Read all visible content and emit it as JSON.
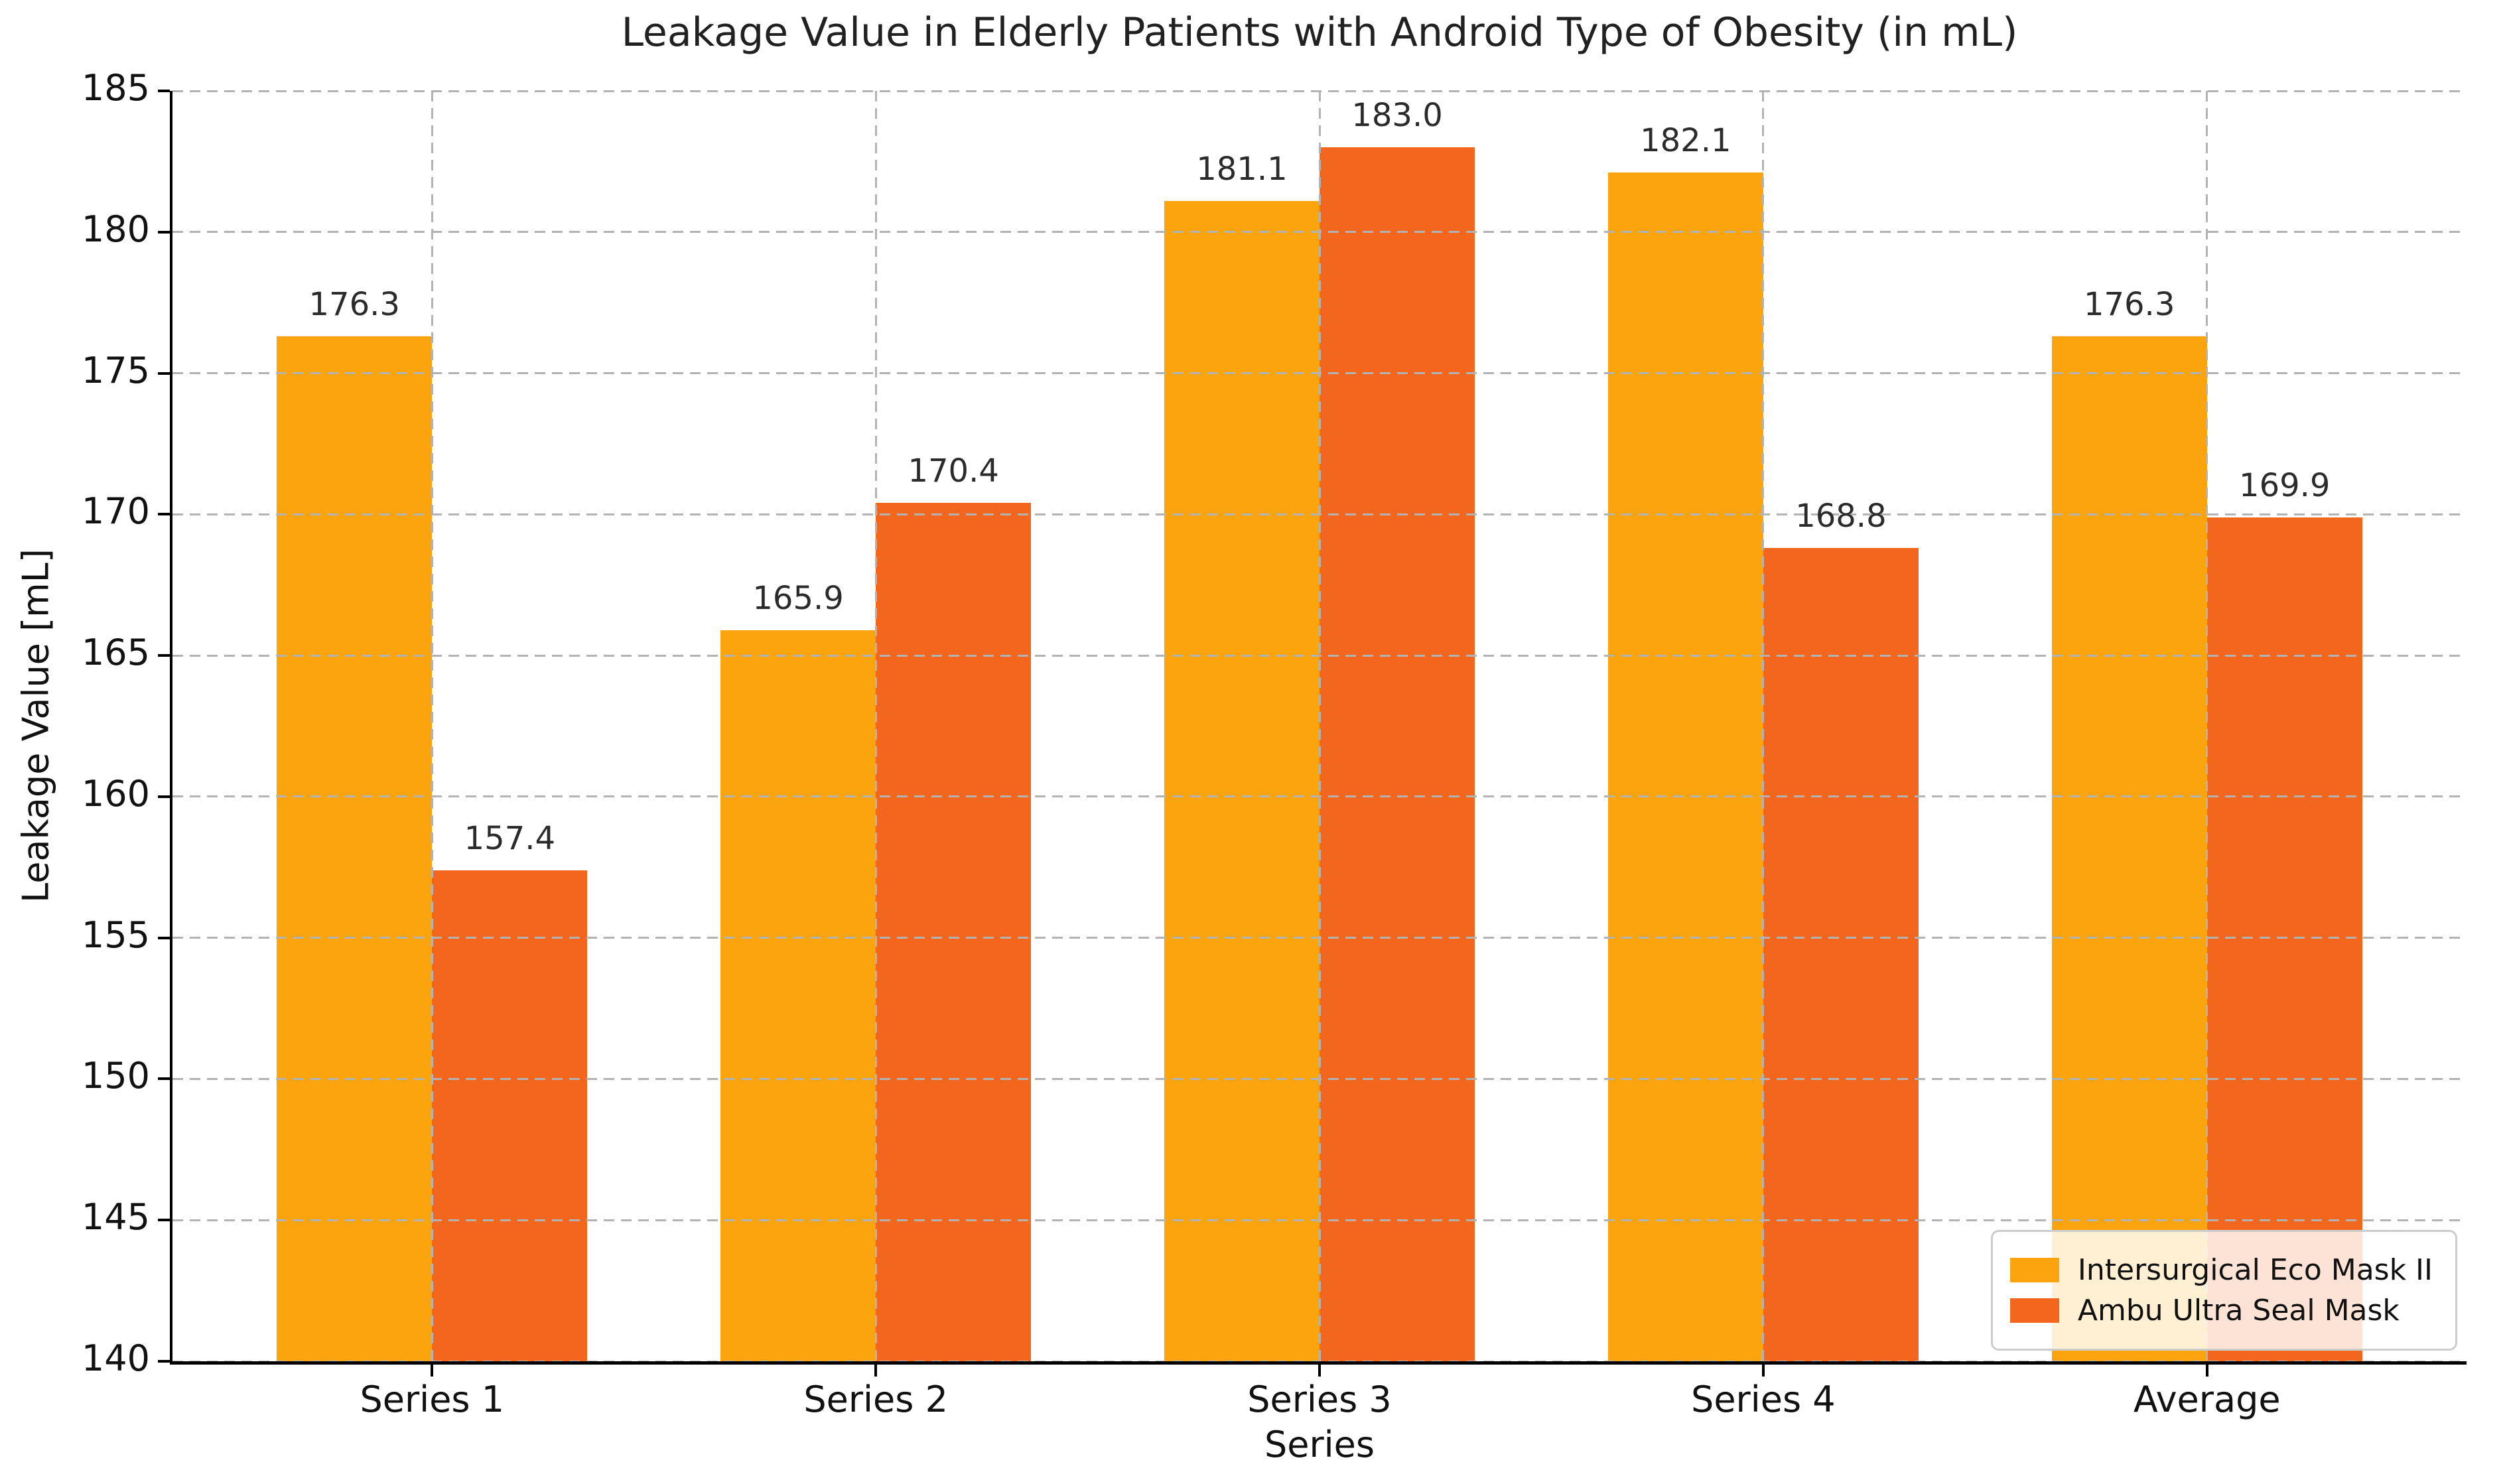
{
  "chart_data": {
    "type": "bar",
    "title": "Leakage Value in Elderly Patients with Android Type of Obesity (in mL)",
    "xlabel": "Series",
    "ylabel": "Leakage Value [mL]",
    "categories": [
      "Series 1",
      "Series 2",
      "Series 3",
      "Series 4",
      "Average"
    ],
    "series": [
      {
        "name": "Intersurgical Eco Mask II",
        "color": "#FCA40D",
        "values": [
          176.3,
          165.9,
          181.1,
          182.1,
          176.3
        ]
      },
      {
        "name": "Ambu Ultra Seal Mask",
        "color": "#F2661E",
        "values": [
          157.4,
          170.4,
          183.0,
          168.8,
          169.9
        ]
      }
    ],
    "ylim": [
      140,
      185
    ],
    "ytick_step": 5,
    "yticks": [
      140,
      145,
      150,
      155,
      160,
      165,
      170,
      175,
      180,
      185
    ],
    "bar_value_labels_decimals": 1,
    "grid": "dashed, horizontal and vertical, drawn above bars",
    "legend_position": "lower right"
  }
}
